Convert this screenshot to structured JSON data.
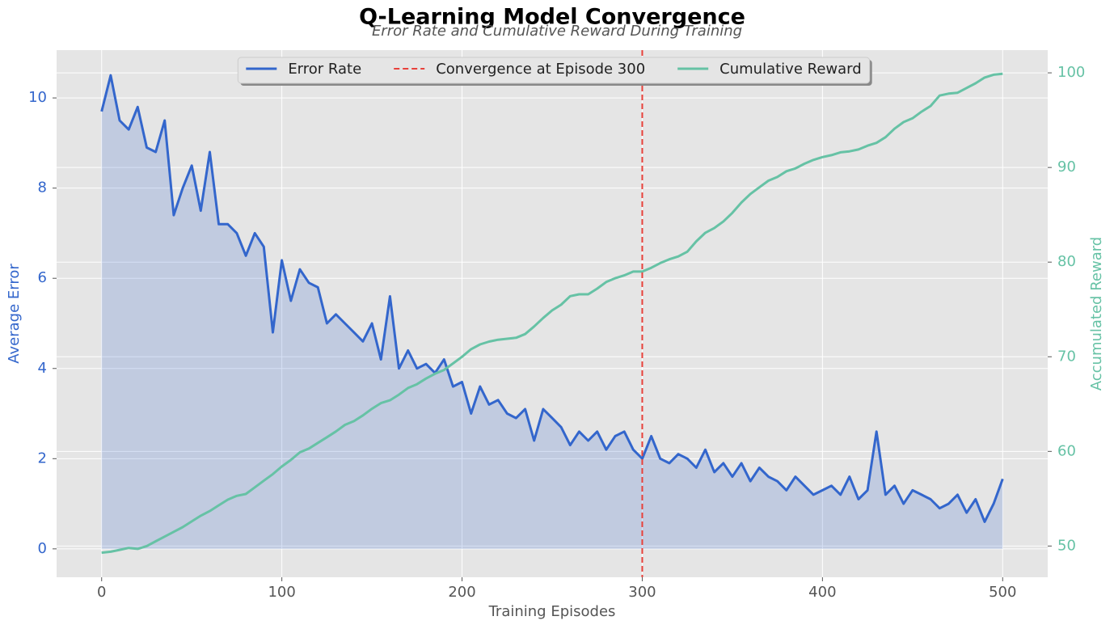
{
  "chart_data": {
    "type": "line",
    "title": "Q-Learning Model Convergence",
    "subtitle": "Error Rate and Cumulative Reward During Training",
    "xlabel": "Training Episodes",
    "ylabel": "Average Error",
    "y2label": "Accumulated Reward",
    "x": [
      0,
      5,
      10,
      15,
      20,
      25,
      30,
      35,
      40,
      45,
      50,
      55,
      60,
      65,
      70,
      75,
      80,
      85,
      90,
      95,
      100,
      105,
      110,
      115,
      120,
      125,
      130,
      135,
      140,
      145,
      150,
      155,
      160,
      165,
      170,
      175,
      180,
      185,
      190,
      195,
      200,
      205,
      210,
      215,
      220,
      225,
      230,
      235,
      240,
      245,
      250,
      255,
      260,
      265,
      270,
      275,
      280,
      285,
      290,
      295,
      300,
      305,
      310,
      315,
      320,
      325,
      330,
      335,
      340,
      345,
      350,
      355,
      360,
      365,
      370,
      375,
      380,
      385,
      390,
      395,
      400,
      405,
      410,
      415,
      420,
      425,
      430,
      435,
      440,
      445,
      450,
      455,
      460,
      465,
      470,
      475,
      480,
      485,
      490,
      495,
      500
    ],
    "series": [
      {
        "name": "Error Rate",
        "color": "#3366cc",
        "fill": true,
        "fill_alpha": 0.2,
        "values": [
          9.7,
          10.5,
          9.5,
          9.3,
          9.8,
          8.9,
          8.8,
          9.5,
          7.4,
          8.0,
          8.5,
          7.5,
          8.8,
          7.2,
          7.2,
          7.0,
          6.5,
          7.0,
          6.7,
          4.8,
          6.4,
          5.5,
          6.2,
          5.9,
          5.8,
          5.0,
          5.2,
          5.0,
          4.8,
          4.6,
          5.0,
          4.2,
          5.6,
          4.0,
          4.4,
          4.0,
          4.1,
          3.9,
          4.2,
          3.6,
          3.7,
          3.0,
          3.6,
          3.2,
          3.3,
          3.0,
          2.9,
          3.1,
          2.4,
          3.1,
          2.9,
          2.7,
          2.3,
          2.6,
          2.4,
          2.6,
          2.2,
          2.5,
          2.6,
          2.2,
          2.0,
          2.5,
          2.0,
          1.9,
          2.1,
          2.0,
          1.8,
          2.2,
          1.7,
          1.9,
          1.6,
          1.9,
          1.5,
          1.8,
          1.6,
          1.5,
          1.3,
          1.6,
          1.4,
          1.2,
          1.3,
          1.4,
          1.2,
          1.6,
          1.1,
          1.3,
          2.6,
          1.2,
          1.4,
          1.0,
          1.3,
          1.2,
          1.1,
          0.9,
          1.0,
          1.2,
          0.8,
          1.1,
          0.6,
          1.0,
          1.55
        ]
      },
      {
        "name": "Cumulative Reward",
        "color": "#66c2a5",
        "axis": "y2",
        "values": [
          49.3,
          49.4,
          49.6,
          49.8,
          49.7,
          50.0,
          50.5,
          51.0,
          51.5,
          52.0,
          52.6,
          53.2,
          53.7,
          54.3,
          54.9,
          55.3,
          55.5,
          56.2,
          56.9,
          57.6,
          58.4,
          59.1,
          59.9,
          60.3,
          60.9,
          61.5,
          62.1,
          62.8,
          63.2,
          63.8,
          64.5,
          65.1,
          65.4,
          66.0,
          66.7,
          67.1,
          67.7,
          68.2,
          68.6,
          69.3,
          70.0,
          70.8,
          71.3,
          71.6,
          71.8,
          71.9,
          72.0,
          72.4,
          73.2,
          74.1,
          74.9,
          75.5,
          76.4,
          76.6,
          76.6,
          77.2,
          77.9,
          78.3,
          78.6,
          79.0,
          79.0,
          79.4,
          79.9,
          80.3,
          80.6,
          81.1,
          82.2,
          83.1,
          83.6,
          84.3,
          85.2,
          86.3,
          87.2,
          87.9,
          88.6,
          89.0,
          89.6,
          89.9,
          90.4,
          90.8,
          91.1,
          91.3,
          91.6,
          91.7,
          91.9,
          92.3,
          92.6,
          93.2,
          94.1,
          94.8,
          95.2,
          95.9,
          96.5,
          97.6,
          97.8,
          97.9,
          98.4,
          98.9,
          99.5,
          99.8,
          99.9
        ]
      }
    ],
    "vlines": [
      {
        "x": 300,
        "name": "Convergence at Episode 300",
        "color": "#e8413a",
        "style": "dashed"
      }
    ],
    "xlim": [
      -25,
      525
    ],
    "xticks": [
      0,
      100,
      200,
      300,
      400,
      500
    ],
    "ylim": [
      -0.63,
      11.06
    ],
    "yticks": [
      0,
      2,
      4,
      6,
      8,
      10
    ],
    "y2lim": [
      46.7,
      102.4
    ],
    "y2ticks": [
      50,
      60,
      70,
      80,
      90,
      100
    ],
    "grid": true,
    "legend": "upper center"
  }
}
